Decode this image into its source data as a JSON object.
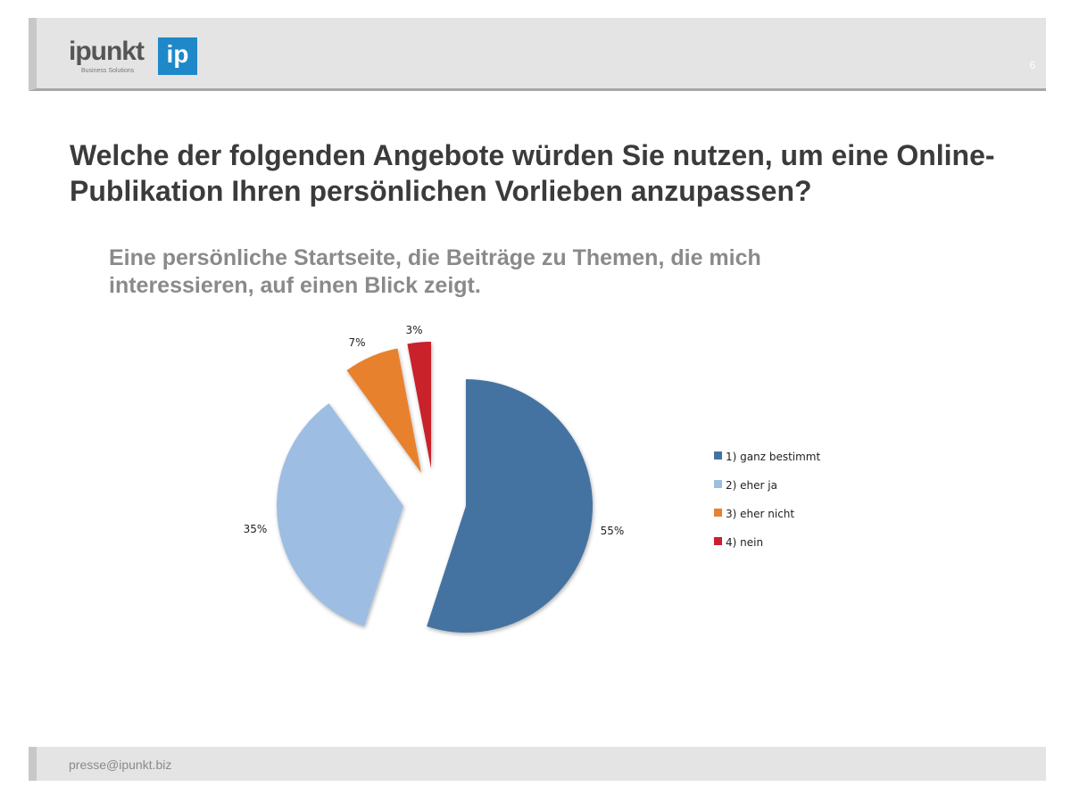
{
  "header": {
    "logo_text": "ipunkt",
    "logo_mark": "ip",
    "logo_sub": "Business Solutions",
    "page_number": "6"
  },
  "title": "Welche der folgenden Angebote würden Sie nutzen, um eine Online-Publikation Ihren persönlichen Vorlieben anzupassen?",
  "subtitle": "Eine persönliche Startseite, die Beiträge zu Themen, die mich interessieren, auf einen Blick zeigt.",
  "chart_data": {
    "type": "pie",
    "title": "",
    "categories": [
      "1) ganz bestimmt",
      "2) eher ja",
      "3) eher nicht",
      "4) nein"
    ],
    "values": [
      55,
      35,
      7,
      3
    ],
    "labels": [
      "55%",
      "35%",
      "7%",
      "3%"
    ],
    "colors": [
      "#4573a1",
      "#9dbee2",
      "#e8812f",
      "#c9202b"
    ],
    "exploded": [
      false,
      true,
      true,
      true
    ],
    "legend_position": "right"
  },
  "footer": {
    "email": "presse@ipunkt.biz"
  }
}
